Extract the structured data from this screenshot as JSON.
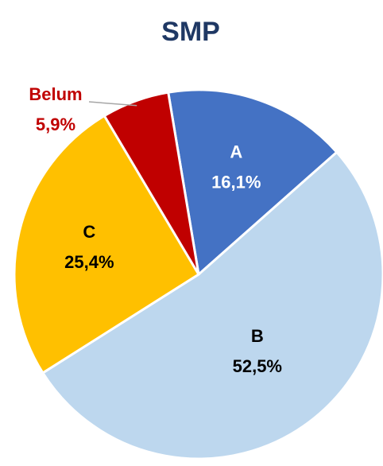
{
  "chart_data": {
    "type": "pie",
    "title": "SMP",
    "categories": [
      "A",
      "B",
      "C",
      "Belum"
    ],
    "values": [
      16.1,
      52.5,
      25.4,
      5.9
    ],
    "value_labels": [
      "16,1%",
      "52,5%",
      "25,4%",
      "5,9%"
    ],
    "colors": [
      "#4472c4",
      "#bdd7ee",
      "#ffc000",
      "#c00000"
    ],
    "label_colors": [
      "#ffffff",
      "#000000",
      "#000000",
      "#c00000"
    ]
  }
}
